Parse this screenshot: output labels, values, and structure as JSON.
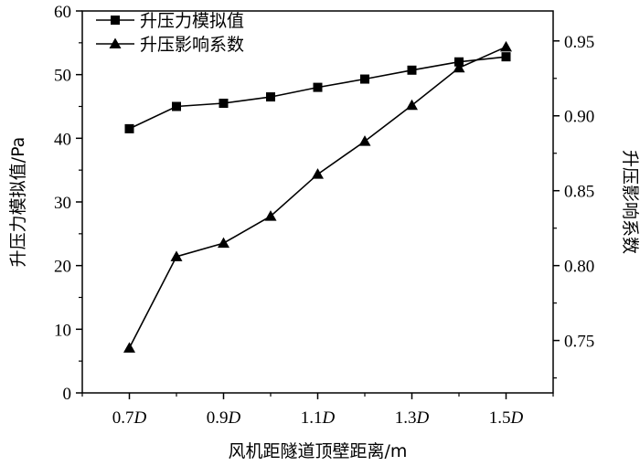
{
  "chart_data": {
    "type": "line",
    "title": "",
    "xlabel": "风机距隧道顶壁距离/m",
    "ylabel": "升压力模拟值/Pa",
    "y2label": "升压影响系数",
    "x": [
      0.7,
      0.8,
      0.9,
      1.0,
      1.1,
      1.2,
      1.3,
      1.4,
      1.5
    ],
    "x_ticks": [
      0.7,
      0.9,
      1.1,
      1.3,
      1.5
    ],
    "x_tick_labels": [
      {
        "num": "0.7",
        "var": "D"
      },
      {
        "num": "0.9",
        "var": "D"
      },
      {
        "num": "1.1",
        "var": "D"
      },
      {
        "num": "1.3",
        "var": "D"
      },
      {
        "num": "1.5",
        "var": "D"
      }
    ],
    "xlim": [
      0.6,
      1.6
    ],
    "ylim": [
      0,
      60
    ],
    "y_ticks": [
      0,
      10,
      20,
      30,
      40,
      50,
      60
    ],
    "y2lim": [
      0.715,
      0.97
    ],
    "y2_ticks": [
      0.75,
      0.8,
      0.85,
      0.9,
      0.95
    ],
    "y2_tick_labels": [
      "0.75",
      "0.80",
      "0.85",
      "0.90",
      "0.95"
    ],
    "grid": false,
    "legend_position": "top-left",
    "series": [
      {
        "name": "升压力模拟值",
        "axis": "left",
        "marker": "square",
        "values": [
          41.5,
          45.0,
          45.5,
          46.5,
          48.0,
          49.3,
          50.7,
          52.0,
          52.8
        ]
      },
      {
        "name": "升压影响系数",
        "axis": "right",
        "marker": "triangle",
        "values": [
          0.745,
          0.806,
          0.815,
          0.833,
          0.861,
          0.883,
          0.907,
          0.932,
          0.946
        ]
      }
    ]
  }
}
